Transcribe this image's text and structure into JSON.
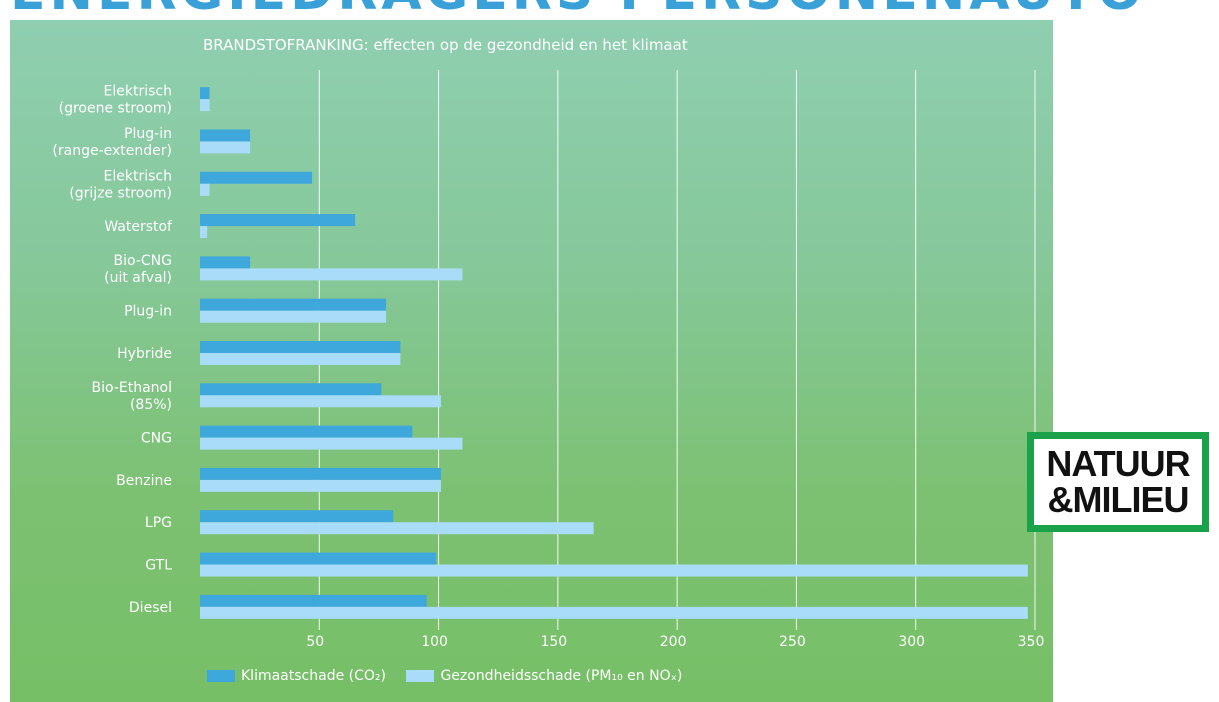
{
  "header": {
    "title": "ENERGIEDRAGERS PERSONENAUTO"
  },
  "logo": {
    "line1": "NATUUR",
    "line2": "&MILIEU"
  },
  "chart_data": {
    "type": "bar",
    "orientation": "horizontal",
    "title": "BRANDSTOFRANKING: effecten op de gezondheid en het klimaat",
    "xlabel": "",
    "ylabel": "",
    "xlim": [
      0,
      350
    ],
    "grid": true,
    "legend_position": "bottom-left",
    "x_ticks": [
      "50",
      "100",
      "150",
      "200",
      "250",
      "300",
      "350"
    ],
    "categories": [
      [
        "Elektrisch",
        "(groene stroom)"
      ],
      [
        "Plug-in",
        "(range-extender)"
      ],
      [
        "Elektrisch",
        "(grijze stroom)"
      ],
      [
        "Waterstof"
      ],
      [
        "Bio-CNG",
        "(uit afval)"
      ],
      [
        "Plug-in"
      ],
      [
        "Hybride"
      ],
      [
        "Bio-Ethanol",
        "(85%)"
      ],
      [
        "CNG"
      ],
      [
        "Benzine"
      ],
      [
        "LPG"
      ],
      [
        "GTL"
      ],
      [
        "Diesel"
      ]
    ],
    "series": [
      {
        "name": "Klimaatschade (CO₂)",
        "color": "#3ea8dd",
        "values": [
          4,
          21,
          47,
          65,
          21,
          78,
          84,
          76,
          89,
          101,
          81,
          99,
          95
        ]
      },
      {
        "name": "Gezondheidsschade (PM₁₀ en NOₓ)",
        "color": "#a8dcf8",
        "values": [
          4,
          21,
          4,
          3,
          110,
          78,
          84,
          101,
          110,
          101,
          165,
          347,
          347
        ]
      }
    ]
  }
}
